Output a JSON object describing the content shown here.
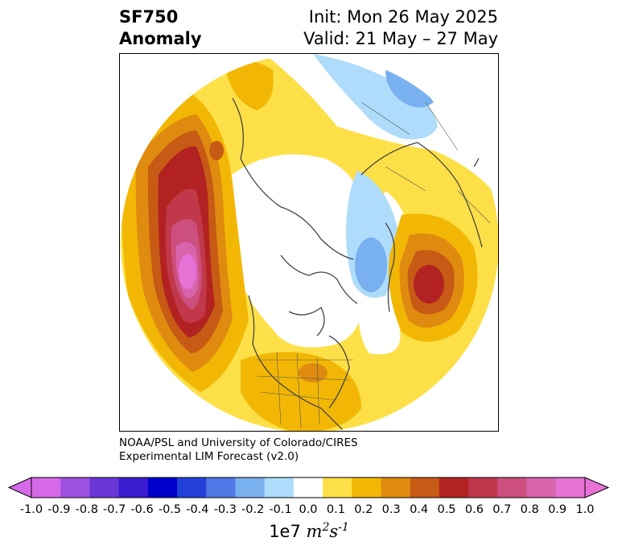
{
  "header": {
    "variable": "SF750",
    "kind": "Anomaly",
    "init": "Init: Mon 26 May 2025",
    "valid": "Valid: 21 May – 27 May"
  },
  "credit": {
    "line1": "NOAA/PSL and University of Colorado/CIRES",
    "line2": "Experimental LIM Forecast (v2.0)"
  },
  "colorbar": {
    "ticks": [
      "-1.0",
      "-0.9",
      "-0.8",
      "-0.7",
      "-0.6",
      "-0.5",
      "-0.4",
      "-0.3",
      "-0.2",
      "-0.1",
      "0.0",
      "0.1",
      "0.2",
      "0.3",
      "0.4",
      "0.5",
      "0.6",
      "0.7",
      "0.8",
      "0.9",
      "1.0"
    ],
    "colors": [
      "#d66ae8",
      "#9f52e2",
      "#6a36d8",
      "#3b1cd0",
      "#0000cc",
      "#2240d8",
      "#5078e6",
      "#78b0f0",
      "#aedcfa",
      "#ffffff",
      "#fde047",
      "#f2b705",
      "#df8b10",
      "#c75a14",
      "#b22222",
      "#c0384a",
      "#cc4f7e",
      "#d864ac",
      "#e672d6"
    ],
    "under_color": "#d66ae8",
    "over_color": "#e672d6",
    "units_prefix": "1e7",
    "units_m": "m",
    "units_m_exp": "2",
    "units_s": "s",
    "units_s_exp": "-1"
  },
  "map": {
    "projection": "north polar stereographic",
    "field": "750 hPa streamfunction anomaly"
  }
}
